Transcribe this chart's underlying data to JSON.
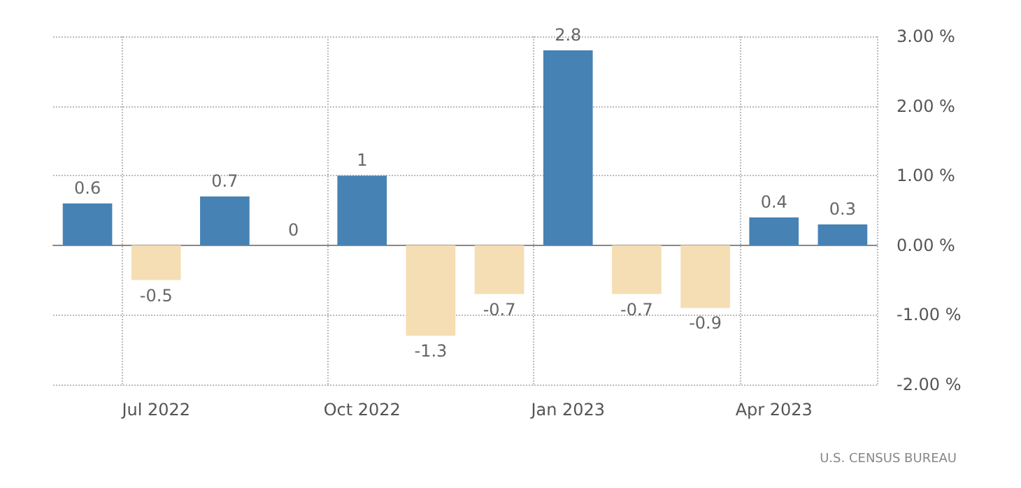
{
  "chart_data": {
    "type": "bar",
    "categories": [
      null,
      "Jul 2022",
      null,
      null,
      "Oct 2022",
      null,
      null,
      "Jan 2023",
      null,
      null,
      "Apr 2023",
      null
    ],
    "values": [
      0.6,
      -0.5,
      0.7,
      0,
      1,
      -1.3,
      -0.7,
      2.8,
      -0.7,
      -0.9,
      0.4,
      0.3
    ],
    "colors": [
      "#4682b4",
      "#f5deb3",
      "#4682b4",
      "#4682b4",
      "#4682b4",
      "#f5deb3",
      "#f5deb3",
      "#4682b4",
      "#f5deb3",
      "#f5deb3",
      "#4682b4",
      "#4682b4"
    ],
    "ylim": [
      -2,
      3
    ],
    "yticks": [
      {
        "value": -2,
        "label": "-2.00 %"
      },
      {
        "value": -1,
        "label": "-1.00 %"
      },
      {
        "value": 0,
        "label": "0.00 %"
      },
      {
        "value": 1,
        "label": "1.00 %"
      },
      {
        "value": 2,
        "label": "2.00 %"
      },
      {
        "value": 3,
        "label": "3.00 %"
      }
    ],
    "grid": true,
    "data_labels": true,
    "annotations": [
      "U.S. CENSUS BUREAU"
    ]
  }
}
